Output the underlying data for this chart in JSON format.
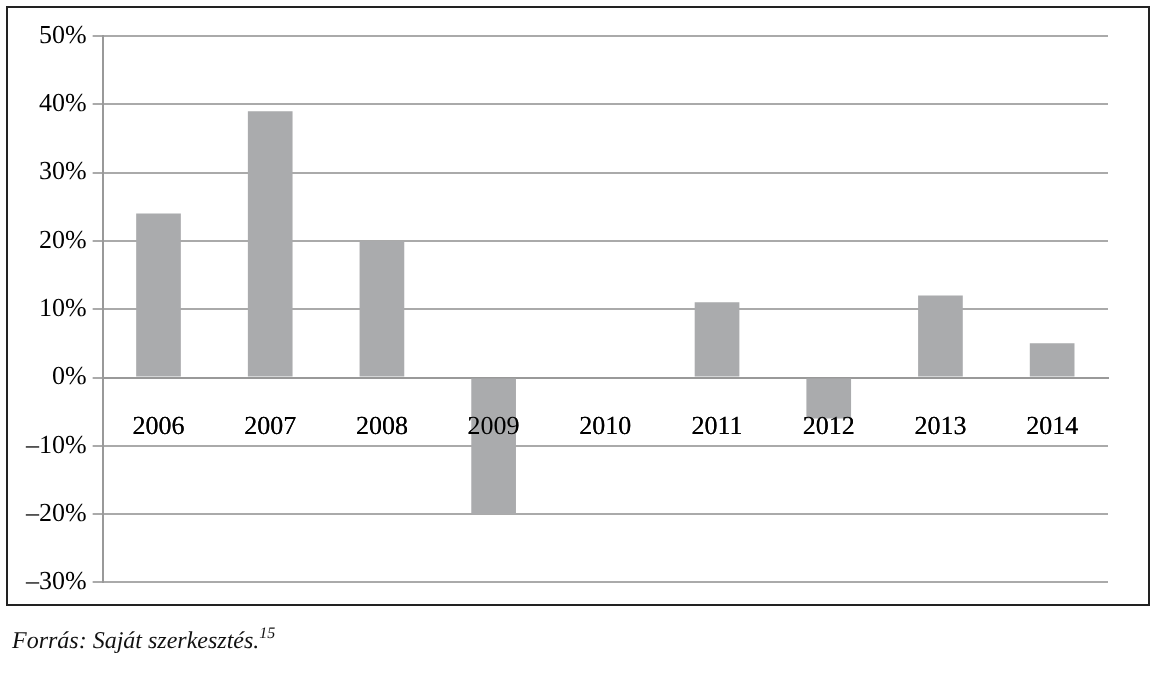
{
  "chart_data": {
    "type": "bar",
    "categories": [
      "2006",
      "2007",
      "2008",
      "2009",
      "2010",
      "2011",
      "2012",
      "2013",
      "2014"
    ],
    "values": [
      24,
      39,
      20,
      -20,
      0,
      11,
      -6,
      12,
      5
    ],
    "color": "#aaabad",
    "ylim": [
      -30,
      50
    ],
    "yticks": [
      {
        "value": -30,
        "label": "–30%"
      },
      {
        "value": -20,
        "label": "–20%"
      },
      {
        "value": -10,
        "label": "–10%"
      },
      {
        "value": 0,
        "label": "0%"
      },
      {
        "value": 10,
        "label": "10%"
      },
      {
        "value": 20,
        "label": "20%"
      },
      {
        "value": 30,
        "label": "30%"
      },
      {
        "value": 40,
        "label": "40%"
      },
      {
        "value": 50,
        "label": "50%"
      }
    ],
    "grid": "y",
    "legend": false,
    "annotations": [
      "Forrás: Saját szerkesztés.$^{15}$"
    ]
  }
}
